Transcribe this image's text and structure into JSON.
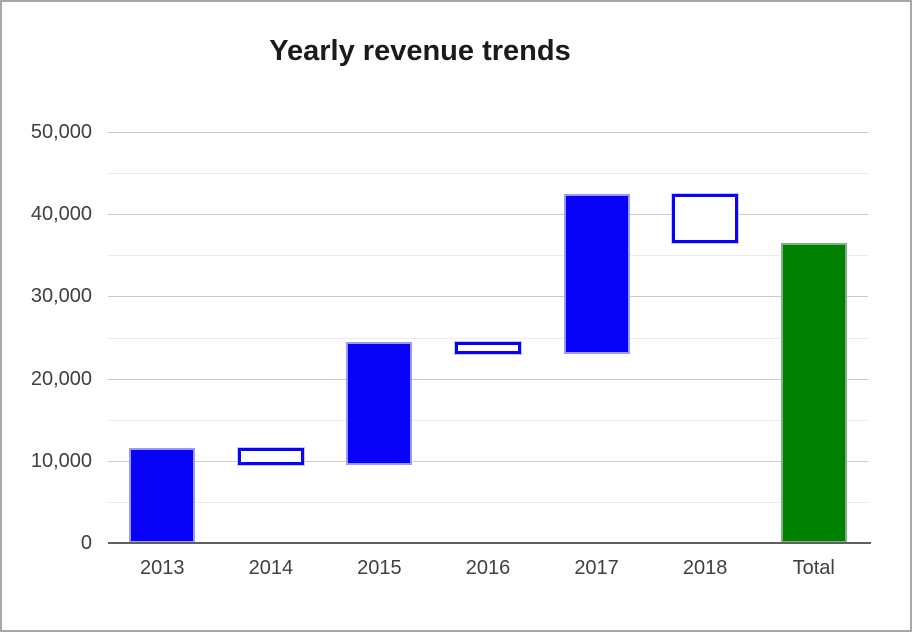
{
  "window": {
    "background": "#ffffff",
    "frame_border_color": "#a6a6ae"
  },
  "chart_data": {
    "type": "bar",
    "subtype": "waterfall",
    "title": "Yearly revenue trends",
    "categories": [
      "2013",
      "2014",
      "2015",
      "2016",
      "2017",
      "2018",
      "Total"
    ],
    "bars": [
      {
        "category": "2013",
        "start": 0,
        "end": 11500,
        "delta": 11500,
        "kind": "increase"
      },
      {
        "category": "2014",
        "start": 11500,
        "end": 9500,
        "delta": -2000,
        "kind": "decrease"
      },
      {
        "category": "2015",
        "start": 9500,
        "end": 24500,
        "delta": 15000,
        "kind": "increase"
      },
      {
        "category": "2016",
        "start": 24500,
        "end": 23000,
        "delta": -1500,
        "kind": "decrease"
      },
      {
        "category": "2017",
        "start": 23000,
        "end": 42500,
        "delta": 19500,
        "kind": "increase"
      },
      {
        "category": "2018",
        "start": 42500,
        "end": 36500,
        "delta": -6000,
        "kind": "decrease"
      },
      {
        "category": "Total",
        "start": 0,
        "end": 36500,
        "delta": 36500,
        "kind": "total"
      }
    ],
    "xlabel": "",
    "ylabel": "",
    "ylim": [
      0,
      50000
    ],
    "y_major_ticks": [
      0,
      10000,
      20000,
      30000,
      40000,
      50000
    ],
    "y_tick_labels": [
      "0",
      "10,000",
      "20,000",
      "30,000",
      "40,000",
      "50,000"
    ],
    "y_minor_ticks": [
      5000,
      15000,
      25000,
      35000,
      45000
    ],
    "grid": "major and minor horizontal gridlines",
    "legend": "none",
    "colors": {
      "increase_fill": "#0802f8",
      "increase_edge": "#9a9af5",
      "decrease_fill": "#ffffff",
      "decrease_edge": "#0802f8",
      "decrease_outer": "#c9c9f9",
      "total_fill": "#008000",
      "total_edge": "#7fb27f",
      "axis_line": "#5f5f5f",
      "major_grid": "#cccccc",
      "minor_grid": "#ececec",
      "tick_label": "#404040",
      "title": "#1b1b1b"
    }
  }
}
